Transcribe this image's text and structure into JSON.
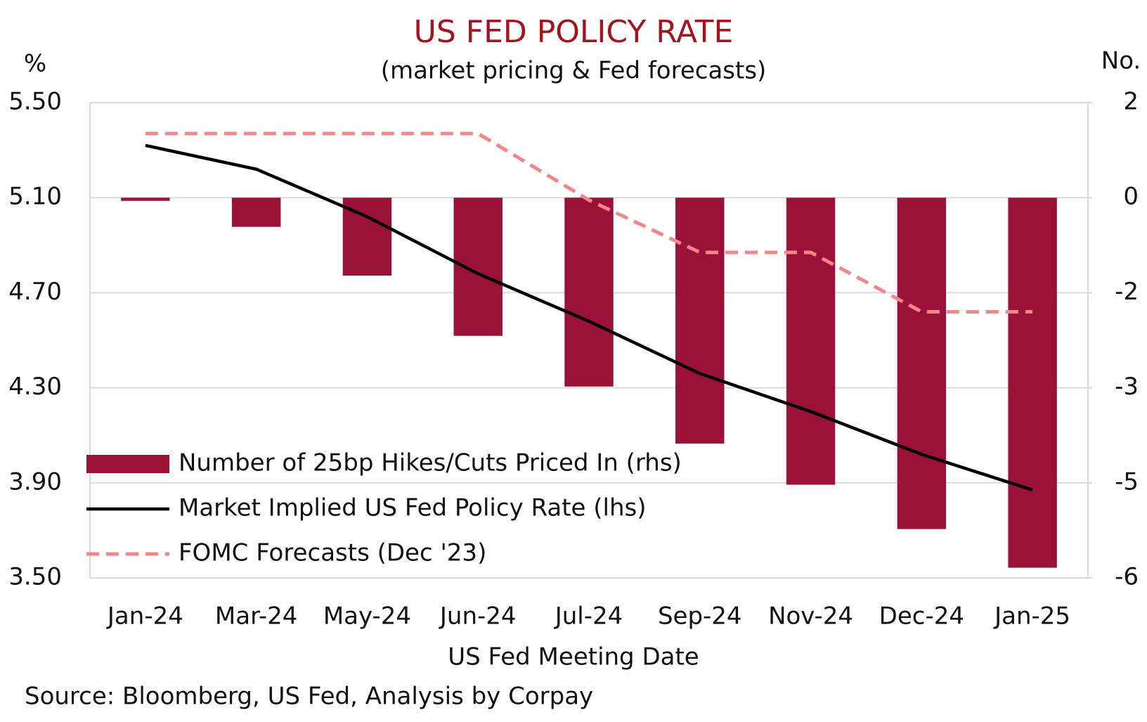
{
  "chart_data": {
    "type": "bar_line",
    "title": "US FED POLICY RATE",
    "subtitle": "(market pricing & Fed forecasts)",
    "y_axis_label": "%",
    "y2_axis_label": "No.",
    "x_axis_label": "US Fed Meeting Date",
    "source": "Source: Bloomberg, US Fed, Analysis by Corpay",
    "categories": [
      "Jan-24",
      "Mar-24",
      "May-24",
      "Jun-24",
      "Jul-24",
      "Sep-24",
      "Nov-24",
      "Dec-24",
      "Jan-25"
    ],
    "ylim": [
      3.5,
      5.5
    ],
    "yticks": [
      {
        "value": 3.5,
        "label": "3.50"
      },
      {
        "value": 3.9,
        "label": "3.90"
      },
      {
        "value": 4.3,
        "label": "4.30"
      },
      {
        "value": 4.7,
        "label": "4.70"
      },
      {
        "value": 5.1,
        "label": "5.10"
      },
      {
        "value": 5.5,
        "label": "5.50"
      }
    ],
    "y2lim": [
      -6,
      1.5
    ],
    "y2ticks": [
      -6,
      {
        "value": -4.5,
        "label": "-5"
      },
      -3,
      {
        "value": -1.5,
        "label": "-2"
      },
      0,
      {
        "value": 1.5,
        "label": "2"
      }
    ],
    "grid": true,
    "legend": "lower-left",
    "series": [
      {
        "name": "Number of 25bp Hikes/Cuts Priced In (rhs)",
        "type": "bar",
        "axis": "y2",
        "color": "#9b1239",
        "values": [
          -0.05,
          -0.46,
          -1.23,
          -2.18,
          -2.98,
          -3.88,
          -4.53,
          -5.23,
          -5.84
        ]
      },
      {
        "name": "Market Implied US Fed Policy Rate (lhs)",
        "type": "line",
        "color": "#000000",
        "values": [
          5.32,
          5.22,
          5.02,
          4.78,
          4.58,
          4.36,
          4.2,
          4.02,
          3.87
        ]
      },
      {
        "name": "FOMC Forecasts (Dec '23)",
        "type": "dashed-line",
        "color": "#f4868a",
        "values": [
          5.37,
          5.37,
          5.37,
          5.37,
          5.09,
          4.87,
          4.87,
          4.62,
          4.62
        ]
      }
    ]
  }
}
